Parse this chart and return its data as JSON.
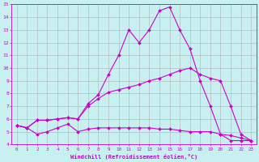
{
  "xlabel": "Windchill (Refroidissement éolien,°C)",
  "xlim": [
    -0.5,
    23.5
  ],
  "ylim": [
    4,
    15
  ],
  "yticks": [
    4,
    5,
    6,
    7,
    8,
    9,
    10,
    11,
    12,
    13,
    14,
    15
  ],
  "xticks": [
    0,
    1,
    2,
    3,
    4,
    5,
    6,
    7,
    8,
    9,
    10,
    11,
    12,
    13,
    14,
    15,
    16,
    17,
    18,
    19,
    20,
    21,
    22,
    23
  ],
  "bg_color": "#c8f0f0",
  "grid_color": "#b0b0b0",
  "line_color": "#cc00cc",
  "line1_x": [
    0,
    1,
    2,
    3,
    4,
    5,
    6,
    7,
    8,
    9,
    10,
    11,
    12,
    13,
    14,
    15,
    16,
    17,
    18,
    19,
    20,
    21,
    22,
    23
  ],
  "line1_y": [
    5.5,
    5.3,
    5.9,
    5.9,
    6.0,
    6.1,
    6.0,
    7.2,
    7.9,
    9.5,
    11.0,
    13.0,
    12.0,
    13.0,
    14.5,
    14.8,
    13.0,
    11.5,
    9.0,
    7.0,
    4.8,
    4.3,
    4.3,
    4.3
  ],
  "line2_x": [
    0,
    1,
    2,
    3,
    4,
    5,
    6,
    7,
    8,
    9,
    10,
    11,
    12,
    13,
    14,
    15,
    16,
    17,
    18,
    19,
    20,
    21,
    22,
    23
  ],
  "line2_y": [
    5.5,
    5.3,
    5.9,
    5.9,
    6.0,
    6.1,
    6.0,
    7.0,
    7.6,
    8.1,
    8.3,
    8.5,
    8.7,
    9.0,
    9.2,
    9.5,
    9.8,
    10.0,
    9.5,
    9.2,
    9.0,
    7.0,
    4.8,
    4.3
  ],
  "line3_x": [
    0,
    1,
    2,
    3,
    4,
    5,
    6,
    7,
    8,
    9,
    10,
    11,
    12,
    13,
    14,
    15,
    16,
    17,
    18,
    19,
    20,
    21,
    22,
    23
  ],
  "line3_y": [
    5.5,
    5.3,
    4.8,
    5.0,
    5.3,
    5.6,
    5.0,
    5.2,
    5.3,
    5.3,
    5.3,
    5.3,
    5.3,
    5.3,
    5.2,
    5.2,
    5.1,
    5.0,
    5.0,
    5.0,
    4.8,
    4.7,
    4.5,
    4.3
  ]
}
